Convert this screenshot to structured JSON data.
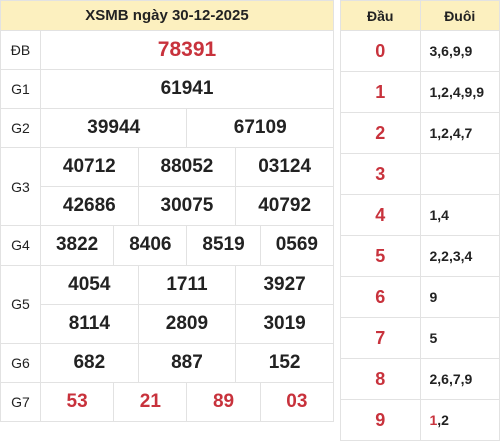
{
  "title": "XSMB ngày 30-12-2025",
  "colors": {
    "header_bg": "#fcf0bf",
    "accent": "#c8323c",
    "text": "#222222",
    "border": "#e2e2e2"
  },
  "prizes": {
    "db": {
      "label": "ĐB",
      "numbers": [
        "78391"
      ]
    },
    "g1": {
      "label": "G1",
      "numbers": [
        "61941"
      ]
    },
    "g2": {
      "label": "G2",
      "numbers": [
        "39944",
        "67109"
      ]
    },
    "g3": {
      "label": "G3",
      "numbers": [
        "40712",
        "88052",
        "03124",
        "42686",
        "30075",
        "40792"
      ]
    },
    "g4": {
      "label": "G4",
      "numbers": [
        "3822",
        "8406",
        "8519",
        "0569"
      ]
    },
    "g5": {
      "label": "G5",
      "numbers": [
        "4054",
        "1711",
        "3927",
        "8114",
        "2809",
        "3019"
      ]
    },
    "g6": {
      "label": "G6",
      "numbers": [
        "682",
        "887",
        "152"
      ]
    },
    "g7": {
      "label": "G7",
      "numbers": [
        "53",
        "21",
        "89",
        "03"
      ]
    }
  },
  "loto": {
    "head_label": "Đầu",
    "tail_label": "Đuôi",
    "rows": [
      {
        "head": "0",
        "tails": "3,6,9,9"
      },
      {
        "head": "1",
        "tails": "1,2,4,9,9"
      },
      {
        "head": "2",
        "tails": "1,2,4,7"
      },
      {
        "head": "3",
        "tails": ""
      },
      {
        "head": "4",
        "tails": "1,4"
      },
      {
        "head": "5",
        "tails": "2,2,3,4"
      },
      {
        "head": "6",
        "tails": "9"
      },
      {
        "head": "7",
        "tails": "5"
      },
      {
        "head": "8",
        "tails": "2,6,7,9"
      },
      {
        "head": "9",
        "tails_red": "1",
        "tails_rest": ",2"
      }
    ]
  }
}
